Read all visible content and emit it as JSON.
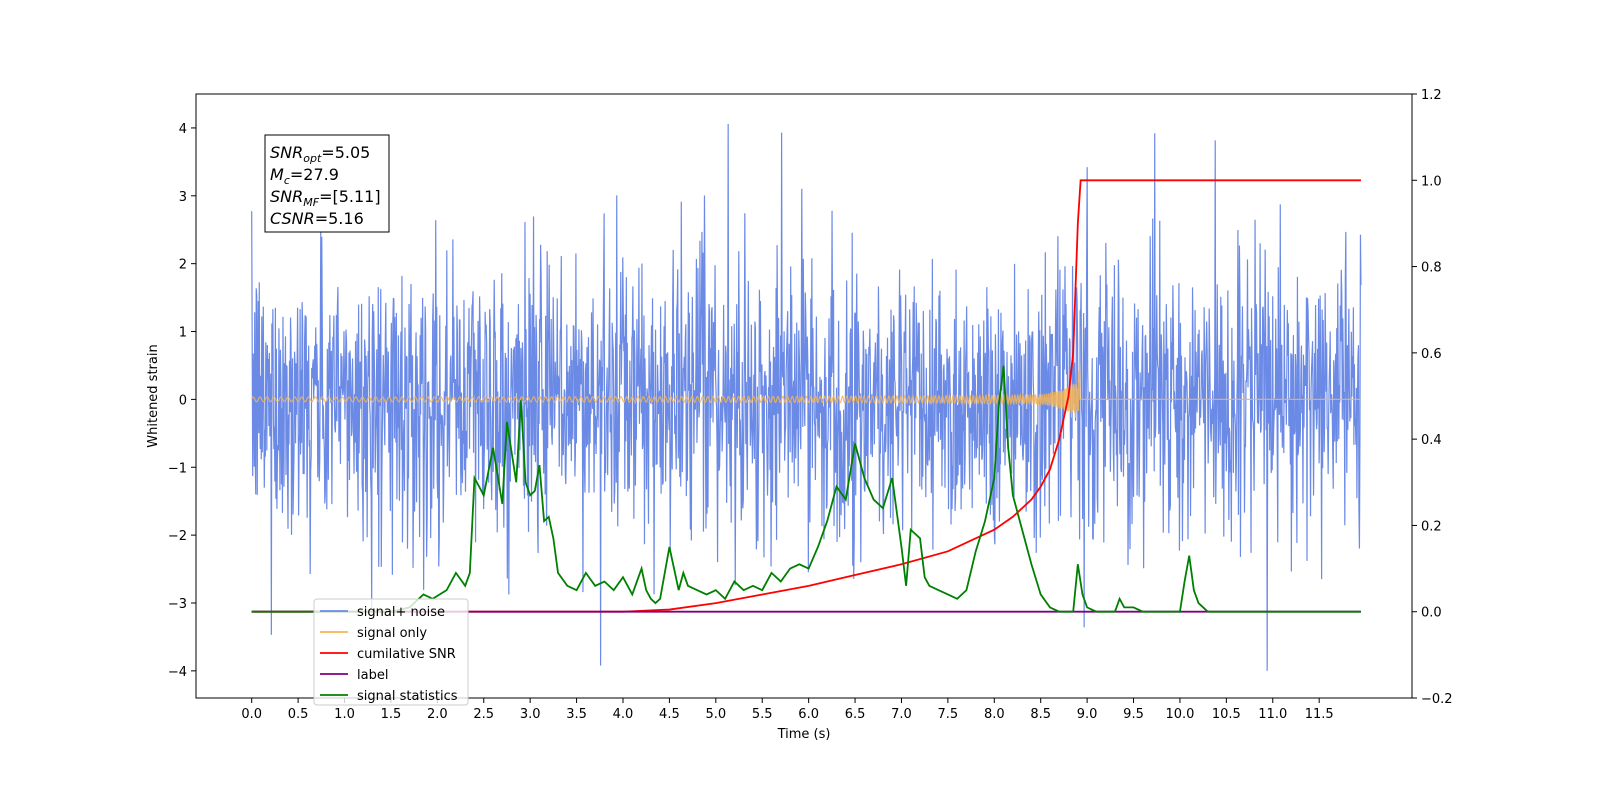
{
  "chart_data": {
    "type": "line",
    "xlabel": "Time (s)",
    "ylabel_left": "Whitened strain",
    "ylabel_right": "",
    "x_ticks": [
      "0.0",
      "0.5",
      "1.0",
      "1.5",
      "2.0",
      "2.5",
      "3.0",
      "3.5",
      "4.0",
      "4.5",
      "5.0",
      "5.5",
      "6.0",
      "6.5",
      "7.0",
      "7.5",
      "8.0",
      "8.5",
      "9.0",
      "9.5",
      "10.0",
      "10.5",
      "11.0",
      "11.5"
    ],
    "y_left_ticks": [
      "4",
      "3",
      "2",
      "1",
      "0",
      "−1",
      "−2",
      "−3",
      "−4"
    ],
    "y_right_ticks": [
      "1.2",
      "1.0",
      "0.8",
      "0.6",
      "0.4",
      "0.2",
      "0.0",
      "−0.2"
    ],
    "xlim": [
      -0.6,
      12.5
    ],
    "ylim_left": [
      -4.4,
      4.5
    ],
    "ylim_right": [
      -0.2,
      1.2
    ],
    "grid": false,
    "annotation": [
      {
        "name": "SNR",
        "sub": "opt",
        "value": "=5.05"
      },
      {
        "name": "M",
        "sub": "c",
        "value": "=27.9"
      },
      {
        "name": "SNR",
        "sub": "MF",
        "value": "=[5.11]"
      },
      {
        "name": "CSNR",
        "sub": "",
        "value": "=5.16"
      }
    ],
    "legend_position": "lower-left",
    "series": [
      {
        "name": "signal+ noise",
        "color": "#6b8ae6",
        "axis": "left",
        "kind": "noise"
      },
      {
        "name": "signal only",
        "color": "#f5b453",
        "axis": "left",
        "kind": "chirp",
        "merger_time": 8.92
      },
      {
        "name": "cumilative SNR",
        "color": "#ff0000",
        "axis": "right",
        "x": [
          0.0,
          4.0,
          4.5,
          5.0,
          5.5,
          6.0,
          6.5,
          7.0,
          7.5,
          7.8,
          8.0,
          8.2,
          8.4,
          8.5,
          8.6,
          8.7,
          8.8,
          8.85,
          8.9,
          8.93,
          9.5,
          10.0,
          11.0,
          11.95
        ],
        "values": [
          0.0,
          0.0,
          0.005,
          0.02,
          0.04,
          0.06,
          0.085,
          0.11,
          0.14,
          0.17,
          0.19,
          0.22,
          0.26,
          0.29,
          0.33,
          0.4,
          0.5,
          0.6,
          0.9,
          1.0,
          1.0,
          1.0,
          1.0,
          1.0
        ]
      },
      {
        "name": "label",
        "color": "#800080",
        "axis": "right",
        "x": [
          0.0,
          11.95
        ],
        "values": [
          0.0,
          0.0
        ]
      },
      {
        "name": "signal statistics",
        "color": "#008000",
        "axis": "right",
        "x": [
          0.0,
          1.5,
          1.7,
          1.85,
          1.95,
          2.1,
          2.2,
          2.3,
          2.35,
          2.4,
          2.5,
          2.6,
          2.7,
          2.75,
          2.8,
          2.85,
          2.9,
          2.95,
          3.0,
          3.05,
          3.1,
          3.15,
          3.2,
          3.25,
          3.3,
          3.4,
          3.5,
          3.6,
          3.7,
          3.8,
          3.9,
          4.0,
          4.1,
          4.2,
          4.25,
          4.3,
          4.35,
          4.4,
          4.5,
          4.6,
          4.65,
          4.7,
          4.8,
          4.9,
          5.0,
          5.1,
          5.2,
          5.3,
          5.4,
          5.5,
          5.6,
          5.7,
          5.8,
          5.9,
          6.0,
          6.1,
          6.2,
          6.3,
          6.4,
          6.5,
          6.6,
          6.7,
          6.8,
          6.9,
          7.0,
          7.05,
          7.1,
          7.2,
          7.25,
          7.3,
          7.4,
          7.5,
          7.6,
          7.7,
          7.8,
          7.9,
          8.0,
          8.05,
          8.1,
          8.15,
          8.2,
          8.3,
          8.4,
          8.5,
          8.6,
          8.7,
          8.85,
          8.9,
          8.95,
          9.0,
          9.1,
          9.2,
          9.3,
          9.35,
          9.4,
          9.5,
          9.6,
          9.7,
          9.8,
          9.9,
          10.0,
          10.05,
          10.1,
          10.15,
          10.2,
          10.3,
          11.95
        ],
        "values": [
          0.0,
          0.0,
          0.01,
          0.04,
          0.03,
          0.05,
          0.09,
          0.06,
          0.09,
          0.31,
          0.27,
          0.38,
          0.25,
          0.44,
          0.37,
          0.3,
          0.49,
          0.3,
          0.27,
          0.28,
          0.34,
          0.21,
          0.22,
          0.17,
          0.09,
          0.06,
          0.05,
          0.09,
          0.06,
          0.07,
          0.05,
          0.08,
          0.04,
          0.1,
          0.05,
          0.03,
          0.02,
          0.03,
          0.15,
          0.05,
          0.09,
          0.06,
          0.05,
          0.04,
          0.05,
          0.03,
          0.07,
          0.05,
          0.06,
          0.05,
          0.09,
          0.07,
          0.1,
          0.11,
          0.1,
          0.15,
          0.21,
          0.29,
          0.26,
          0.39,
          0.31,
          0.26,
          0.24,
          0.31,
          0.15,
          0.06,
          0.19,
          0.17,
          0.08,
          0.06,
          0.05,
          0.04,
          0.03,
          0.05,
          0.14,
          0.21,
          0.31,
          0.48,
          0.57,
          0.38,
          0.27,
          0.19,
          0.11,
          0.04,
          0.01,
          0.0,
          0.0,
          0.11,
          0.04,
          0.01,
          0.0,
          0.0,
          0.0,
          0.03,
          0.01,
          0.01,
          0.0,
          0.0,
          0.0,
          0.0,
          0.0,
          0.07,
          0.13,
          0.05,
          0.02,
          0.0,
          0.0
        ]
      }
    ]
  }
}
